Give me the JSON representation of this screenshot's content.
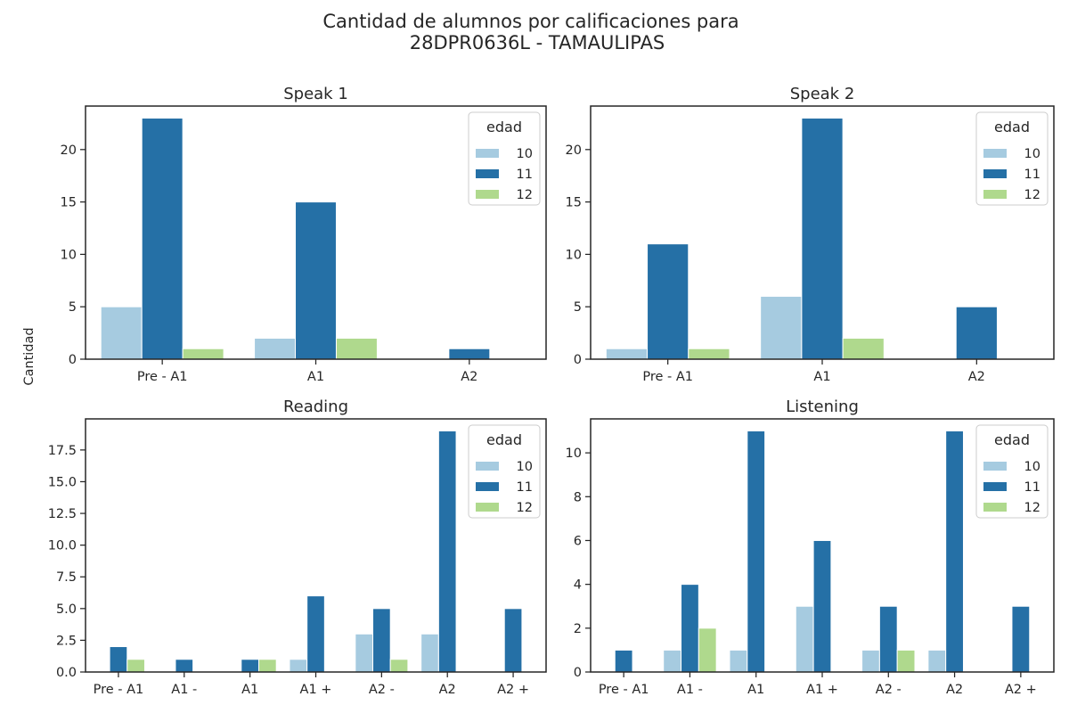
{
  "figure": {
    "title_line1": "Cantidad de alumnos por calificaciones para",
    "title_line2": "28DPR0636L - TAMAULIPAS",
    "ylabel": "Cantidad"
  },
  "legend": {
    "title": "edad",
    "entries": [
      "10",
      "11",
      "12"
    ]
  },
  "colors": {
    "series": [
      "#a6cbe0",
      "#2570a6",
      "#afd98d"
    ],
    "axis": "#262626",
    "bar_edge": "#ffffff"
  },
  "chart_data": [
    {
      "type": "bar",
      "title": "Speak 1",
      "categories": [
        "Pre - A1",
        "A1",
        "A2"
      ],
      "series": [
        {
          "name": "10",
          "values": [
            5,
            2,
            0
          ]
        },
        {
          "name": "11",
          "values": [
            23,
            15,
            1
          ]
        },
        {
          "name": "12",
          "values": [
            1,
            2,
            0
          ]
        }
      ],
      "ylim": [
        0,
        24.15
      ],
      "yticks": [
        0,
        5,
        10,
        15,
        20
      ],
      "ytick_labels": [
        "0",
        "5",
        "10",
        "15",
        "20"
      ],
      "legend_position": "top-right"
    },
    {
      "type": "bar",
      "title": "Speak 2",
      "categories": [
        "Pre - A1",
        "A1",
        "A2"
      ],
      "series": [
        {
          "name": "10",
          "values": [
            1,
            6,
            0
          ]
        },
        {
          "name": "11",
          "values": [
            11,
            23,
            5
          ]
        },
        {
          "name": "12",
          "values": [
            1,
            2,
            0
          ]
        }
      ],
      "ylim": [
        0,
        24.15
      ],
      "yticks": [
        0,
        5,
        10,
        15,
        20
      ],
      "ytick_labels": [
        "0",
        "5",
        "10",
        "15",
        "20"
      ],
      "legend_position": "top-right"
    },
    {
      "type": "bar",
      "title": "Reading",
      "categories": [
        "Pre - A1",
        "A1 -",
        "A1",
        "A1 +",
        "A2 -",
        "A2",
        "A2 +"
      ],
      "series": [
        {
          "name": "10",
          "values": [
            0,
            0,
            0,
            1,
            3,
            3,
            0
          ]
        },
        {
          "name": "11",
          "values": [
            2,
            1,
            1,
            6,
            5,
            19,
            5
          ]
        },
        {
          "name": "12",
          "values": [
            1,
            0,
            1,
            0,
            1,
            0,
            0
          ]
        }
      ],
      "ylim": [
        0,
        19.95
      ],
      "yticks": [
        0,
        2.5,
        5,
        7.5,
        10,
        12.5,
        15,
        17.5
      ],
      "ytick_labels": [
        "0.0",
        "2.5",
        "5.0",
        "7.5",
        "10.0",
        "12.5",
        "15.0",
        "17.5"
      ],
      "legend_position": "top-right"
    },
    {
      "type": "bar",
      "title": "Listening",
      "categories": [
        "Pre - A1",
        "A1 -",
        "A1",
        "A1 +",
        "A2 -",
        "A2",
        "A2 +"
      ],
      "series": [
        {
          "name": "10",
          "values": [
            0,
            1,
            1,
            3,
            1,
            1,
            0
          ]
        },
        {
          "name": "11",
          "values": [
            1,
            4,
            11,
            6,
            3,
            11,
            3
          ]
        },
        {
          "name": "12",
          "values": [
            0,
            2,
            0,
            0,
            1,
            0,
            0
          ]
        }
      ],
      "ylim": [
        0,
        11.55
      ],
      "yticks": [
        0,
        2,
        4,
        6,
        8,
        10
      ],
      "ytick_labels": [
        "0",
        "2",
        "4",
        "6",
        "8",
        "10"
      ],
      "legend_position": "top-right"
    }
  ]
}
